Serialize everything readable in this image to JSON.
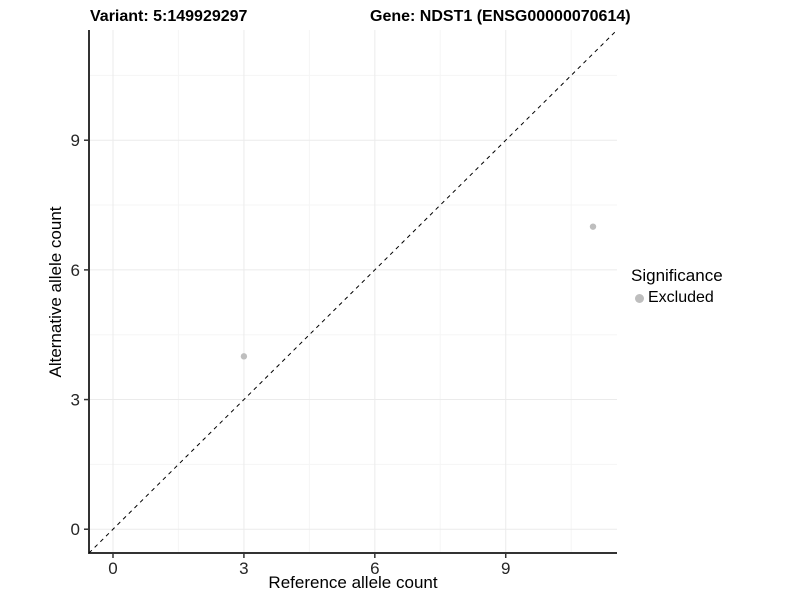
{
  "chart_data": {
    "type": "scatter",
    "title_left": "Variant: 5:149929297",
    "title_right": "Gene: NDST1 (ENSG00000070614)",
    "xlabel": "Reference allele count",
    "ylabel": "Alternative allele count",
    "xlim": [
      -0.55,
      11.55
    ],
    "ylim": [
      -0.55,
      11.55
    ],
    "x_major_ticks": [
      0,
      3,
      6,
      9
    ],
    "y_major_ticks": [
      0,
      3,
      6,
      9
    ],
    "x_minor_ticks": [
      1.5,
      4.5,
      7.5,
      10.5
    ],
    "y_minor_ticks": [
      1.5,
      4.5,
      7.5,
      10.5
    ],
    "grid": "on",
    "identity_line": {
      "style": "dashed",
      "equation": "y = x",
      "color": "#000000"
    },
    "series": [
      {
        "name": "Excluded",
        "color": "#bebebe",
        "marker": "circle",
        "points": [
          {
            "x": 3,
            "y": 4
          },
          {
            "x": 11,
            "y": 7
          }
        ]
      }
    ],
    "legend": {
      "title": "Significance",
      "position": "right",
      "entries": [
        {
          "label": "Excluded",
          "color": "#bebebe",
          "marker": "circle"
        }
      ]
    },
    "colors": {
      "grid_major": "#ebebeb",
      "grid_minor": "#f5f5f5",
      "axis_line": "#333333",
      "tick_mark": "#333333",
      "tick_text": "#262626"
    }
  }
}
